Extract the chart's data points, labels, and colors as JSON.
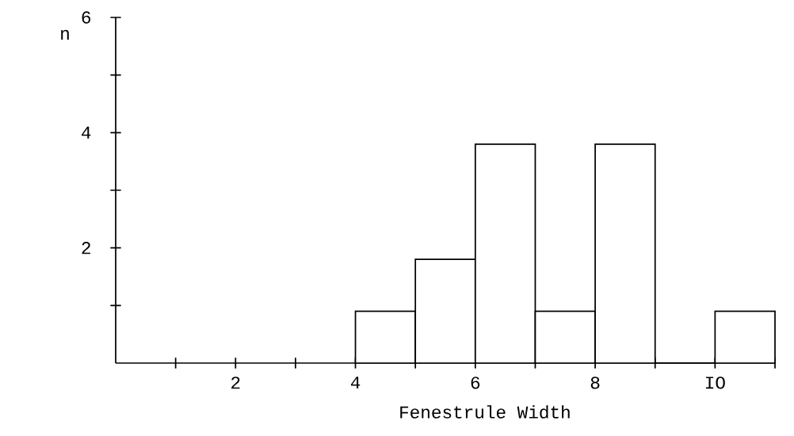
{
  "chart_data": {
    "type": "histogram",
    "xlabel": "Fenestrule Width",
    "ylabel": "n",
    "bins": [
      4,
      5,
      6,
      7,
      8,
      9,
      10,
      11
    ],
    "values": [
      0.9,
      1.8,
      3.8,
      0.9,
      3.8,
      0,
      0.9
    ],
    "color": "#000000",
    "xlim": [
      0,
      11
    ],
    "xticks": [
      {
        "value": 1,
        "label": null
      },
      2,
      {
        "value": 3,
        "label": null
      },
      4,
      {
        "value": 5,
        "label": null
      },
      6,
      {
        "value": 7,
        "label": null
      },
      8,
      {
        "value": 9,
        "label": null
      },
      {
        "value": 10,
        "label": "IO"
      },
      {
        "value": 11,
        "label": null
      }
    ],
    "ylim": [
      0,
      6
    ],
    "yticks": [
      {
        "value": 1,
        "label": null
      },
      2,
      {
        "value": 3,
        "label": null
      },
      4,
      {
        "value": 5,
        "label": null
      },
      6
    ],
    "grid": false
  }
}
